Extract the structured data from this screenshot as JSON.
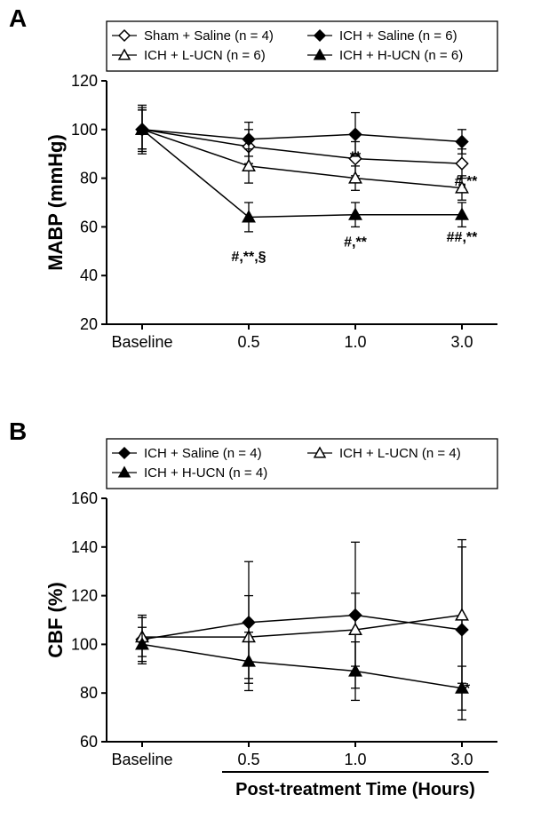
{
  "panelA": {
    "label": "A",
    "type": "line-errorbar",
    "ylabel": "MABP (mmHg)",
    "xlabel": "",
    "categories": [
      "Baseline",
      "0.5",
      "1.0",
      "3.0"
    ],
    "ylim": [
      20,
      120
    ],
    "ytick_step": 20,
    "axis_color": "#000000",
    "background_color": "#ffffff",
    "label_fontsize": 22,
    "tick_fontsize": 18,
    "legend_fontsize": 15,
    "line_width": 1.5,
    "marker_size": 8,
    "error_cap": 5,
    "legend_box": true,
    "series": [
      {
        "name": "Sham + Saline (n = 4)",
        "marker": "diamond",
        "fill": "#ffffff",
        "stroke": "#000000",
        "y": [
          100,
          93,
          88,
          86
        ],
        "err": [
          10,
          7,
          7,
          6
        ]
      },
      {
        "name": "ICH + Saline (n = 6)",
        "marker": "diamond",
        "fill": "#000000",
        "stroke": "#000000",
        "y": [
          100,
          96,
          98,
          95
        ],
        "err": [
          8,
          7,
          9,
          5
        ]
      },
      {
        "name": "ICH + L-UCN (n = 6)",
        "marker": "triangle",
        "fill": "#ffffff",
        "stroke": "#000000",
        "y": [
          100,
          85,
          80,
          76
        ],
        "err": [
          9,
          7,
          5,
          5
        ]
      },
      {
        "name": "ICH + H-UCN (n = 6)",
        "marker": "triangle",
        "fill": "#000000",
        "stroke": "#000000",
        "y": [
          100,
          64,
          65,
          65
        ],
        "err": [
          8,
          6,
          5,
          5
        ]
      }
    ],
    "annotations": [
      {
        "text": "**",
        "xi": 2,
        "y": 87
      },
      {
        "text": "#,**",
        "xi": 3.15,
        "y": 77
      },
      {
        "text": "#,**,§",
        "xi": 1,
        "y": 46
      },
      {
        "text": "#,**",
        "xi": 2,
        "y": 52
      },
      {
        "text": "##,**",
        "xi": 3,
        "y": 54
      }
    ]
  },
  "panelB": {
    "label": "B",
    "type": "line-errorbar",
    "ylabel": "CBF (%)",
    "xlabel": "Post-treatment Time (Hours)",
    "categories": [
      "Baseline",
      "0.5",
      "1.0",
      "3.0"
    ],
    "ylim": [
      60,
      160
    ],
    "ytick_step": 20,
    "axis_color": "#000000",
    "background_color": "#ffffff",
    "label_fontsize": 22,
    "tick_fontsize": 18,
    "legend_fontsize": 15,
    "line_width": 1.5,
    "marker_size": 8,
    "error_cap": 5,
    "legend_box": true,
    "series": [
      {
        "name": "ICH + Saline (n = 4)",
        "marker": "diamond",
        "fill": "#000000",
        "stroke": "#000000",
        "y": [
          102,
          109,
          112,
          106
        ],
        "err": [
          10,
          25,
          30,
          37
        ]
      },
      {
        "name": "ICH + L-UCN (n = 4)",
        "marker": "triangle",
        "fill": "#ffffff",
        "stroke": "#000000",
        "y": [
          103,
          103,
          106,
          112
        ],
        "err": [
          8,
          17,
          15,
          28
        ]
      },
      {
        "name": "ICH + H-UCN (n = 4)",
        "marker": "triangle",
        "fill": "#000000",
        "stroke": "#000000",
        "y": [
          100,
          93,
          89,
          82
        ],
        "err": [
          7,
          12,
          12,
          9
        ]
      }
    ],
    "annotations": [
      {
        "text": "*",
        "xi": 3.2,
        "y": 80
      }
    ]
  }
}
